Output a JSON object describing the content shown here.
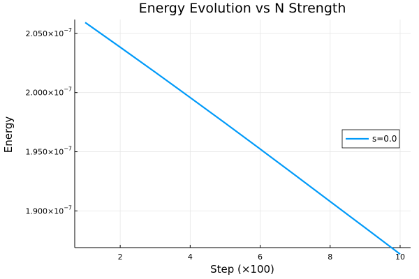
{
  "chart_data": {
    "type": "line",
    "title": "Energy Evolution vs N Strength",
    "xlabel": "Step (×100)",
    "ylabel": "Energy",
    "xlim": [
      0.7,
      10.3
    ],
    "ylim": [
      1.869e-07,
      2.0617e-07
    ],
    "x_ticks": [
      {
        "value": 2,
        "label": "2"
      },
      {
        "value": 4,
        "label": "4"
      },
      {
        "value": 6,
        "label": "6"
      },
      {
        "value": 8,
        "label": "8"
      },
      {
        "value": 10,
        "label": "10"
      }
    ],
    "y_ticks": [
      {
        "value": 1.9e-07,
        "mantissa": "1.900×10",
        "exp": "−7"
      },
      {
        "value": 1.95e-07,
        "mantissa": "1.950×10",
        "exp": "−7"
      },
      {
        "value": 2e-07,
        "mantissa": "2.000×10",
        "exp": "−7"
      },
      {
        "value": 2.05e-07,
        "mantissa": "2.050×10",
        "exp": "−7"
      }
    ],
    "grid": true,
    "legend_position": "right",
    "series": [
      {
        "name": "s=0.0",
        "color": "#009af9",
        "x": [
          1,
          2,
          3,
          4,
          5,
          6,
          7,
          8,
          9,
          10
        ],
        "y": [
          2.0592e-07,
          2.0383e-07,
          2.0172e-07,
          1.9958e-07,
          1.9742e-07,
          1.9523e-07,
          1.9302e-07,
          1.908e-07,
          1.8858e-07,
          1.8635e-07
        ]
      }
    ]
  }
}
